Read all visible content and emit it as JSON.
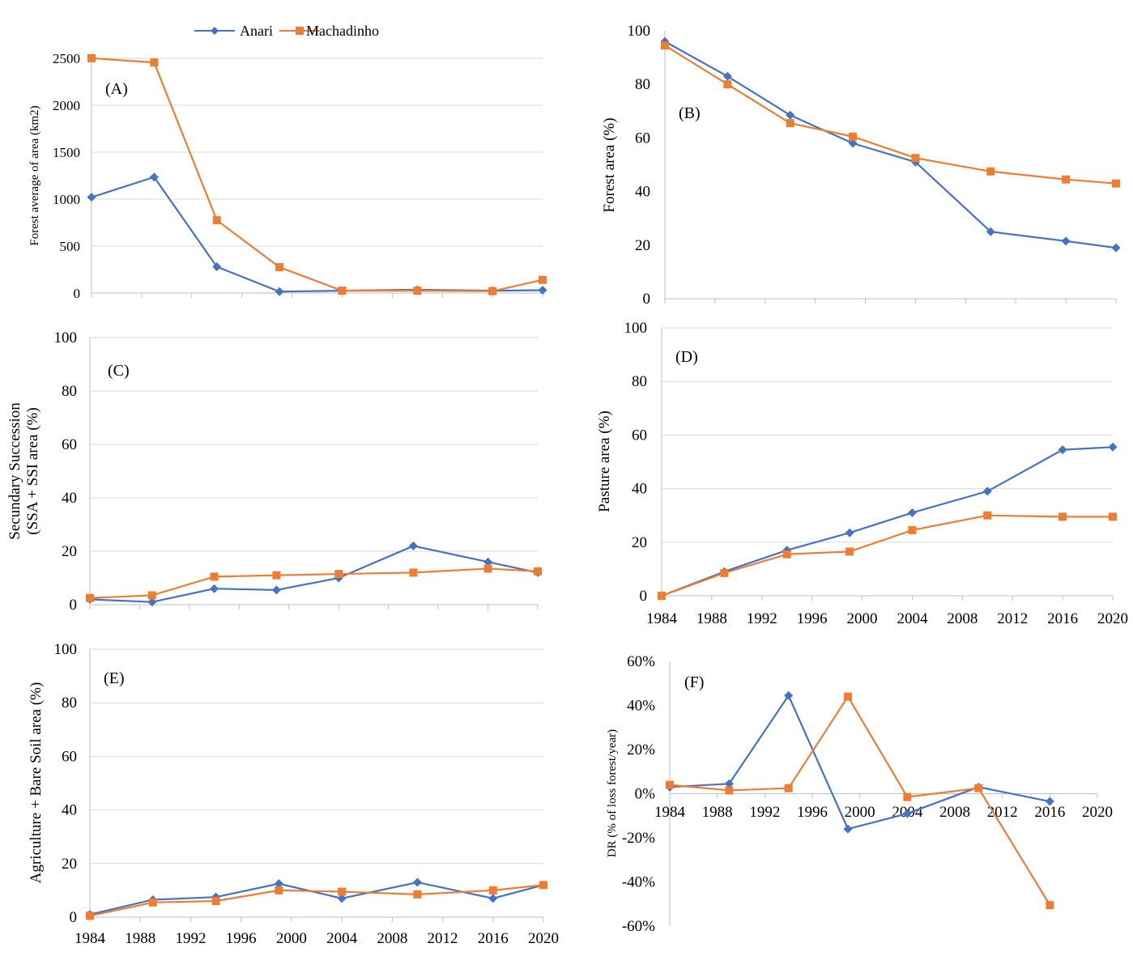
{
  "legend": {
    "series": [
      {
        "name": "Anari",
        "color": "#4472C4",
        "marker": "diamond"
      },
      {
        "name": "Machadinho",
        "color": "#ED7D31",
        "marker": "square"
      }
    ]
  },
  "chart_data": [
    {
      "id": "A",
      "type": "line",
      "panel_label": "(A)",
      "ylabel": "Forest average  of area (km2)",
      "ylim": [
        0,
        2500
      ],
      "yticks": [
        0,
        500,
        1000,
        1500,
        2000,
        2500
      ],
      "ytick_labels": [
        "0",
        "500",
        "1000",
        "1500",
        "2000",
        "2500"
      ],
      "xlim": [
        1984,
        2020
      ],
      "xticks": [],
      "x": [
        1984,
        1989,
        1994,
        1999,
        2004,
        2010,
        2016,
        2020
      ],
      "series": [
        {
          "name": "Anari",
          "values": [
            1020,
            1235,
            280,
            15,
            25,
            35,
            25,
            30
          ]
        },
        {
          "name": "Machadinho",
          "values": [
            2510,
            2455,
            775,
            275,
            25,
            25,
            20,
            140
          ]
        }
      ],
      "grid": true
    },
    {
      "id": "B",
      "type": "line",
      "panel_label": "(B)",
      "ylabel": "Forest  area (%)",
      "ylim": [
        0,
        100
      ],
      "yticks": [
        0,
        20,
        40,
        60,
        80,
        100
      ],
      "ytick_labels": [
        "0",
        "20",
        "40",
        "60",
        "80",
        "100"
      ],
      "xlim": [
        1984,
        2020
      ],
      "xticks": [],
      "x": [
        1984,
        1989,
        1994,
        1999,
        2004,
        2010,
        2016,
        2020
      ],
      "series": [
        {
          "name": "Anari",
          "values": [
            96,
            83,
            68.5,
            58,
            51,
            25,
            21.5,
            19
          ]
        },
        {
          "name": "Machadinho",
          "values": [
            94.5,
            80,
            65.5,
            60.5,
            52.5,
            47.5,
            44.5,
            43
          ]
        }
      ],
      "grid": false
    },
    {
      "id": "C",
      "type": "line",
      "panel_label": "(C)",
      "ylabel_lines": [
        "Secundary Succession",
        "(SSA + SSI  area (%)"
      ],
      "ylim": [
        0,
        100
      ],
      "yticks": [
        0,
        20,
        40,
        60,
        80,
        100
      ],
      "ytick_labels": [
        "0",
        "20",
        "40",
        "60",
        "80",
        "100"
      ],
      "xlim": [
        1984,
        2020
      ],
      "xticks": [],
      "x": [
        1984,
        1989,
        1994,
        1999,
        2004,
        2010,
        2016,
        2020
      ],
      "series": [
        {
          "name": "Anari",
          "values": [
            2,
            1,
            6,
            5.5,
            10,
            22,
            16,
            12
          ]
        },
        {
          "name": "Machadinho",
          "values": [
            2.5,
            3.5,
            10.5,
            11,
            11.5,
            12,
            13.5,
            12.5
          ]
        }
      ],
      "grid": true
    },
    {
      "id": "D",
      "type": "line",
      "panel_label": "(D)",
      "ylabel": "Pasture area (%)",
      "ylim": [
        0,
        100
      ],
      "yticks": [
        0,
        20,
        40,
        60,
        80,
        100
      ],
      "ytick_labels": [
        "0",
        "20",
        "40",
        "60",
        "80",
        "100"
      ],
      "xlim": [
        1984,
        2020
      ],
      "xticks": [
        1984,
        1988,
        1992,
        1996,
        2000,
        2004,
        2008,
        2012,
        2016,
        2020
      ],
      "x": [
        1984,
        1989,
        1994,
        1999,
        2004,
        2010,
        2016,
        2020
      ],
      "series": [
        {
          "name": "Anari",
          "values": [
            0,
            9,
            17,
            23.5,
            31,
            39,
            54.5,
            55.5
          ]
        },
        {
          "name": "Machadinho",
          "values": [
            0,
            8.5,
            15.5,
            16.5,
            24.5,
            30,
            29.5,
            29.5
          ]
        }
      ],
      "grid": true
    },
    {
      "id": "E",
      "type": "line",
      "panel_label": "(E)",
      "ylabel": "Agriculture + Bare Soil  area (%)",
      "ylim": [
        0,
        100
      ],
      "yticks": [
        0,
        20,
        40,
        60,
        80,
        100
      ],
      "ytick_labels": [
        "0",
        "20",
        "40",
        "60",
        "80",
        "100"
      ],
      "xlim": [
        1984,
        2020
      ],
      "xticks": [
        1984,
        1988,
        1992,
        1996,
        2000,
        2004,
        2008,
        2012,
        2016,
        2020
      ],
      "x": [
        1984,
        1989,
        1994,
        1999,
        2004,
        2010,
        2016,
        2020
      ],
      "series": [
        {
          "name": "Anari",
          "values": [
            1,
            6.5,
            7.5,
            12.5,
            7,
            13,
            7,
            12
          ]
        },
        {
          "name": "Machadinho",
          "values": [
            0.5,
            5.5,
            6,
            10,
            9.5,
            8.5,
            10,
            12
          ]
        }
      ],
      "grid": true
    },
    {
      "id": "F",
      "type": "line",
      "panel_label": "(F)",
      "ylabel": "DR (% of loss  forest/year)",
      "ylim": [
        -60,
        60
      ],
      "yticks": [
        -60,
        -40,
        -20,
        0,
        20,
        40,
        60
      ],
      "ytick_labels": [
        "-60%",
        "-40%",
        "-20%",
        "0%",
        "20%",
        "40%",
        "60%"
      ],
      "xlim": [
        1984,
        2020
      ],
      "xticks": [
        1984,
        1988,
        1992,
        1996,
        2000,
        2004,
        2008,
        2012,
        2016,
        2020
      ],
      "x": [
        1984,
        1989,
        1994,
        1999,
        2004,
        2010,
        2016
      ],
      "series": [
        {
          "name": "Anari",
          "values": [
            3,
            4.5,
            44.5,
            -16,
            -9,
            3,
            -3.5
          ]
        },
        {
          "name": "Machadinho",
          "values": [
            4,
            1.5,
            2.5,
            44,
            -1.5,
            2.5,
            -50.5
          ]
        }
      ],
      "grid": false
    }
  ]
}
